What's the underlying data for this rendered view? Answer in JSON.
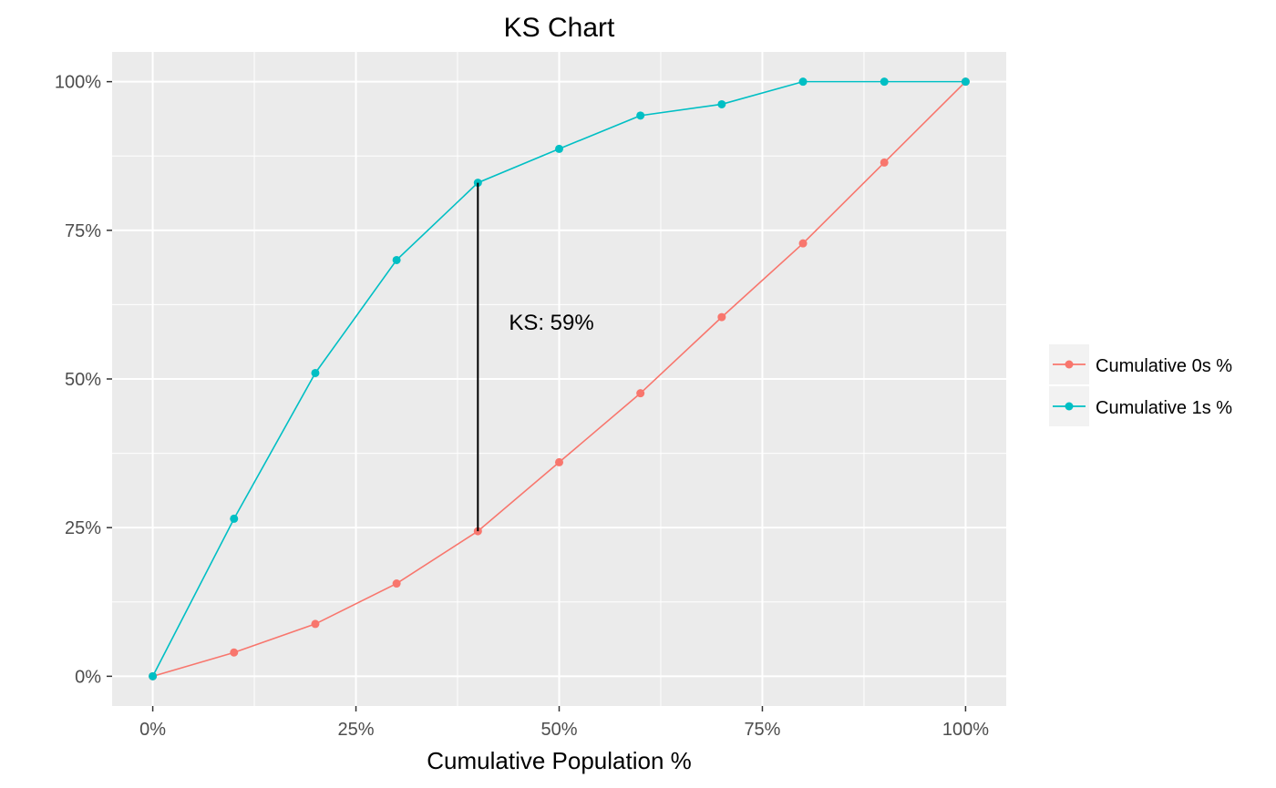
{
  "chart_data": {
    "type": "line",
    "title": "KS Chart",
    "xlabel": "Cumulative Population %",
    "ylabel": "",
    "xlim": [
      -0.05,
      1.05
    ],
    "ylim": [
      -0.05,
      1.05
    ],
    "x_ticks": [
      0,
      0.25,
      0.5,
      0.75,
      1.0
    ],
    "x_tick_labels": [
      "0%",
      "25%",
      "50%",
      "75%",
      "100%"
    ],
    "y_ticks": [
      0,
      0.25,
      0.5,
      0.75,
      1.0
    ],
    "y_tick_labels": [
      "0%",
      "25%",
      "50%",
      "75%",
      "100%"
    ],
    "grid": true,
    "legend_position": "right",
    "x": [
      0,
      0.1,
      0.2,
      0.3,
      0.4,
      0.5,
      0.6,
      0.7,
      0.8,
      0.9,
      1.0
    ],
    "series": [
      {
        "name": "Cumulative 0s %",
        "color": "#F8766D",
        "values": [
          0,
          0.04,
          0.088,
          0.156,
          0.244,
          0.36,
          0.476,
          0.604,
          0.728,
          0.864,
          1.0
        ]
      },
      {
        "name": "Cumulative 1s %",
        "color": "#00BFC4",
        "values": [
          0,
          0.265,
          0.51,
          0.7,
          0.83,
          0.887,
          0.943,
          0.962,
          1.0,
          1.0,
          1.0
        ]
      }
    ],
    "annotation": {
      "text": "KS: 59%",
      "x": 0.4,
      "y_from": 0.244,
      "y_to": 0.83,
      "color": "#000000"
    },
    "panel_color": "#EBEBEB",
    "grid_color": "#FFFFFF"
  }
}
